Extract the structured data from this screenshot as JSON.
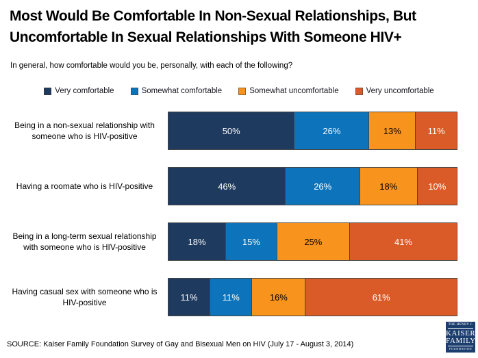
{
  "title": {
    "line1": "Most Would Be Comfortable In Non-Sexual Relationships, But",
    "line2": "Uncomfortable In Sexual Relationships With Someone HIV+"
  },
  "subtitle": "In general, how comfortable would you be, personally, with each of the following?",
  "chart_data": {
    "type": "bar",
    "stacked": true,
    "orientation": "horizontal",
    "unit": "%",
    "xlim": [
      0,
      100
    ],
    "grid": false,
    "legend_position": "top",
    "title": "Most Would Be Comfortable In Non-Sexual Relationships, But Uncomfortable In Sexual Relationships With Someone HIV+",
    "categories": [
      "Being in a non-sexual relationship with someone who is HIV-positive",
      "Having a roomate who is HIV-positive",
      "Being in a long-term sexual relationship with someone who is HIV-positive",
      "Having casual sex with someone who is HIV-positive"
    ],
    "series": [
      {
        "name": "Very comfortable",
        "color": "#1f3a5f",
        "label_color": "#ffffff",
        "values": [
          50,
          46,
          18,
          11
        ]
      },
      {
        "name": "Somewhat comfortable",
        "color": "#0d74bb",
        "label_color": "#ffffff",
        "values": [
          26,
          26,
          15,
          11
        ]
      },
      {
        "name": "Somewhat uncomfortable",
        "color": "#f8941d",
        "label_color": "#000000",
        "values": [
          13,
          18,
          25,
          16
        ]
      },
      {
        "name": "Very uncomfortable",
        "color": "#db5b28",
        "label_color": "#ffffff",
        "values": [
          11,
          10,
          41,
          61
        ]
      }
    ]
  },
  "source": "SOURCE: Kaiser Family Foundation Survey of Gay and Bisexual Men on HIV (July 17 - August 3, 2014)",
  "logo": {
    "henry": "THE HENRY J.",
    "kaiser": "KAISER",
    "family": "FAMILY",
    "foundation": "FOUNDATION"
  }
}
